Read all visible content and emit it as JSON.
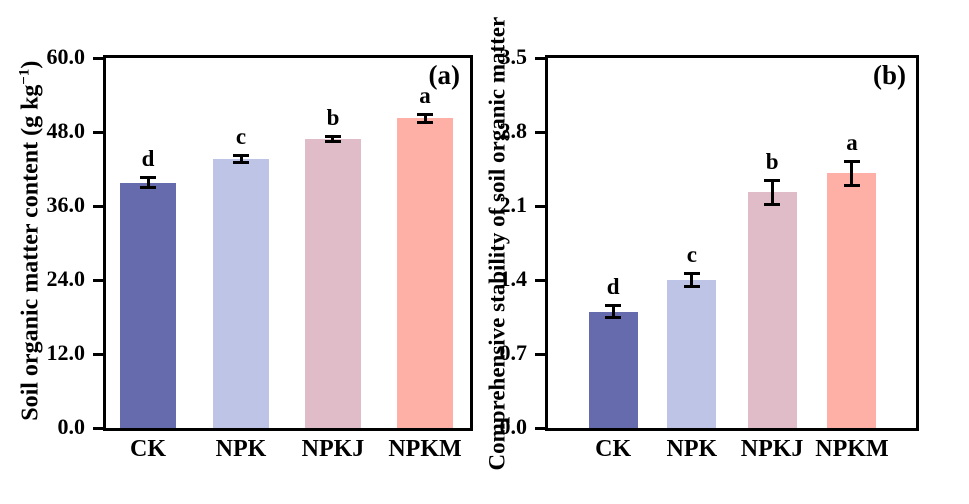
{
  "page": {
    "background": "#ffffff",
    "text_color": "#000000"
  },
  "chart_data": [
    {
      "type": "bar",
      "panel_tag": "(a)",
      "ylabel_main": "Soil organic matter content (g kg",
      "ylabel_sup": "−1",
      "ylabel_end": ")",
      "categories": [
        "CK",
        "NPK",
        "NPKJ",
        "NPKM"
      ],
      "values": [
        39.8,
        43.6,
        46.9,
        50.2
      ],
      "errors": [
        0.9,
        0.7,
        0.5,
        0.7
      ],
      "sig_letters": [
        "d",
        "c",
        "b",
        "a"
      ],
      "bar_colors": [
        "#666BAE",
        "#BEC4E6",
        "#E0BCC9",
        "#FFB0A6"
      ],
      "ylim": [
        0,
        60
      ],
      "ytick_step": 12,
      "ytick_labels": [
        "0.0",
        "12.0",
        "24.0",
        "36.0",
        "48.0",
        "60.0"
      ],
      "xlabel": "",
      "grid": false,
      "legend": "none"
    },
    {
      "type": "bar",
      "panel_tag": "(b)",
      "ylabel_main": "Comprehensive stability of soil organic matter",
      "ylabel_sup": "",
      "ylabel_end": "",
      "categories": [
        "CK",
        "NPK",
        "NPKJ",
        "NPKM"
      ],
      "values": [
        1.1,
        1.4,
        2.23,
        2.41
      ],
      "errors": [
        0.06,
        0.07,
        0.12,
        0.12
      ],
      "sig_letters": [
        "d",
        "c",
        "b",
        "a"
      ],
      "bar_colors": [
        "#666BAE",
        "#BEC4E6",
        "#E0BCC9",
        "#FFB0A6"
      ],
      "ylim": [
        0,
        3.5
      ],
      "ytick_step": 0.7,
      "ytick_labels": [
        "0.0",
        "0.7",
        "1.4",
        "2.1",
        "2.8",
        "3.5"
      ],
      "xlabel": "",
      "grid": false,
      "legend": "none"
    }
  ]
}
